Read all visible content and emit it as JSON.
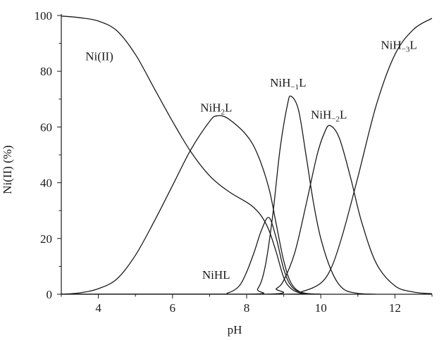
{
  "chart_data": {
    "type": "line",
    "xlabel": "pH",
    "ylabel": "Ni(II) (%)",
    "xlim": [
      3,
      13
    ],
    "ylim": [
      0,
      100
    ],
    "x_ticks": [
      4,
      6,
      8,
      10,
      12
    ],
    "y_ticks": [
      0,
      20,
      40,
      60,
      80,
      100
    ],
    "grid": false,
    "line_color": "#1a1a1a",
    "series": [
      {
        "name": "Ni(II)",
        "label_parts": [
          {
            "t": "Ni(II)"
          }
        ],
        "points": [
          [
            3.0,
            99.8
          ],
          [
            3.5,
            99.2
          ],
          [
            4.0,
            98.0
          ],
          [
            4.5,
            94.5
          ],
          [
            5.0,
            86.0
          ],
          [
            5.5,
            74.0
          ],
          [
            6.0,
            62.0
          ],
          [
            6.5,
            51.0
          ],
          [
            7.0,
            42.5
          ],
          [
            7.5,
            37.0
          ],
          [
            8.0,
            33.0
          ],
          [
            8.2,
            31.0
          ],
          [
            8.4,
            28.0
          ],
          [
            8.6,
            23.0
          ],
          [
            8.8,
            15.0
          ],
          [
            9.0,
            6.0
          ],
          [
            9.2,
            2.0
          ],
          [
            9.5,
            0.3
          ],
          [
            10.0,
            0
          ]
        ]
      },
      {
        "name": "NiH2L",
        "label_parts": [
          {
            "t": "NiH"
          },
          {
            "t": "2",
            "sub": true
          },
          {
            "t": "L"
          }
        ],
        "points": [
          [
            3.0,
            0.0
          ],
          [
            3.5,
            0.5
          ],
          [
            4.0,
            2.0
          ],
          [
            4.5,
            5.5
          ],
          [
            5.0,
            14.0
          ],
          [
            5.5,
            26.0
          ],
          [
            6.0,
            39.0
          ],
          [
            6.5,
            52.0
          ],
          [
            7.0,
            62.0
          ],
          [
            7.2,
            64.0
          ],
          [
            7.5,
            63.0
          ],
          [
            8.0,
            57.0
          ],
          [
            8.3,
            50.0
          ],
          [
            8.6,
            38.0
          ],
          [
            8.8,
            25.0
          ],
          [
            9.0,
            12.0
          ],
          [
            9.2,
            4.0
          ],
          [
            9.5,
            0.5
          ],
          [
            10.0,
            0
          ]
        ]
      },
      {
        "name": "NiHL",
        "label_parts": [
          {
            "t": "NiHL"
          }
        ],
        "points": [
          [
            3.0,
            0
          ],
          [
            7.0,
            0
          ],
          [
            7.5,
            0.5
          ],
          [
            7.8,
            3.0
          ],
          [
            8.0,
            8.0
          ],
          [
            8.2,
            15.0
          ],
          [
            8.4,
            23.0
          ],
          [
            8.6,
            27.5
          ],
          [
            8.8,
            20.0
          ],
          [
            9.0,
            9.0
          ],
          [
            9.2,
            3.0
          ],
          [
            9.5,
            0.5
          ],
          [
            10.0,
            0
          ]
        ]
      },
      {
        "name": "NiH-1L",
        "label_parts": [
          {
            "t": "NiH"
          },
          {
            "t": "−1",
            "sub": true
          },
          {
            "t": "L"
          }
        ],
        "points": [
          [
            3.0,
            0
          ],
          [
            8.0,
            0
          ],
          [
            8.3,
            2.0
          ],
          [
            8.5,
            10.0
          ],
          [
            8.7,
            28.0
          ],
          [
            8.9,
            52.0
          ],
          [
            9.1,
            68.0
          ],
          [
            9.2,
            71.0
          ],
          [
            9.4,
            66.0
          ],
          [
            9.6,
            50.0
          ],
          [
            9.8,
            33.0
          ],
          [
            10.0,
            20.0
          ],
          [
            10.3,
            8.0
          ],
          [
            10.6,
            2.0
          ],
          [
            11.0,
            0.3
          ],
          [
            11.5,
            0
          ]
        ]
      },
      {
        "name": "NiH-2L",
        "label_parts": [
          {
            "t": "NiH"
          },
          {
            "t": "−2",
            "sub": true
          },
          {
            "t": "L"
          }
        ],
        "points": [
          [
            3.0,
            0
          ],
          [
            8.5,
            0
          ],
          [
            8.8,
            2.0
          ],
          [
            9.0,
            5.0
          ],
          [
            9.3,
            15.0
          ],
          [
            9.6,
            32.0
          ],
          [
            9.9,
            50.0
          ],
          [
            10.1,
            58.0
          ],
          [
            10.25,
            60.5
          ],
          [
            10.5,
            56.0
          ],
          [
            10.8,
            42.0
          ],
          [
            11.1,
            26.0
          ],
          [
            11.5,
            11.0
          ],
          [
            12.0,
            3.0
          ],
          [
            12.5,
            0.8
          ],
          [
            13.0,
            0.2
          ]
        ]
      },
      {
        "name": "NiH-3L",
        "label_parts": [
          {
            "t": "NiH"
          },
          {
            "t": "−3",
            "sub": true
          },
          {
            "t": "L"
          }
        ],
        "points": [
          [
            3.0,
            0
          ],
          [
            9.0,
            0
          ],
          [
            9.5,
            1.0
          ],
          [
            10.0,
            4.0
          ],
          [
            10.3,
            10.0
          ],
          [
            10.6,
            22.0
          ],
          [
            11.0,
            42.0
          ],
          [
            11.5,
            68.0
          ],
          [
            12.0,
            86.0
          ],
          [
            12.5,
            95.0
          ],
          [
            13.0,
            99.0
          ]
        ]
      }
    ]
  }
}
